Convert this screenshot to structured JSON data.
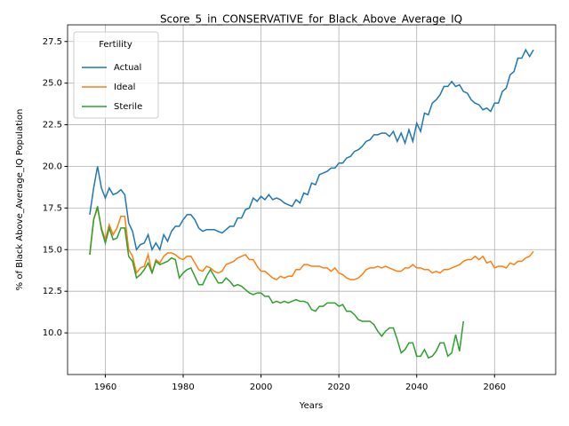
{
  "chart_data": {
    "type": "line",
    "title": "Score_5_in_CONSERVATIVE_for_Black_Above_Average_IQ",
    "xlabel": "Years",
    "ylabel": "% of Black Above_Average_IQ Population",
    "legend_title": "Fertility",
    "legend": "upper left",
    "grid": true,
    "x": [
      1956,
      1957,
      1958,
      1959,
      1960,
      1961,
      1962,
      1963,
      1964,
      1965,
      1966,
      1967,
      1968,
      1969,
      1970,
      1971,
      1972,
      1973,
      1974,
      1975,
      1976,
      1977,
      1978,
      1979,
      1980,
      1981,
      1982,
      1983,
      1984,
      1985,
      1986,
      1987,
      1988,
      1989,
      1990,
      1991,
      1992,
      1993,
      1994,
      1995,
      1996,
      1997,
      1998,
      1999,
      2000,
      2001,
      2002,
      2003,
      2004,
      2005,
      2006,
      2007,
      2008,
      2009,
      2010,
      2011,
      2012,
      2013,
      2014,
      2015,
      2016,
      2017,
      2018,
      2019,
      2020,
      2021,
      2022,
      2023,
      2024,
      2025,
      2026,
      2027,
      2028,
      2029,
      2030,
      2031,
      2032,
      2033,
      2034,
      2035,
      2036,
      2037,
      2038,
      2039,
      2040,
      2041,
      2042,
      2043,
      2044,
      2045,
      2046,
      2047,
      2048,
      2049,
      2050,
      2051,
      2052,
      2053,
      2054,
      2055,
      2056,
      2057,
      2058,
      2059,
      2060,
      2061,
      2062,
      2063,
      2064,
      2065,
      2066,
      2067,
      2068,
      2069,
      2070
    ],
    "series": [
      {
        "name": "Actual",
        "color": "#1f77b4",
        "values": [
          17.1,
          18.7,
          20.0,
          18.7,
          18.1,
          18.7,
          18.3,
          18.4,
          18.6,
          18.3,
          16.6,
          16.1,
          15.0,
          15.3,
          15.4,
          15.9,
          15.0,
          15.4,
          15.0,
          15.9,
          15.5,
          16.1,
          16.4,
          16.4,
          16.8,
          17.1,
          17.1,
          16.8,
          16.3,
          16.1,
          16.2,
          16.2,
          16.2,
          16.1,
          16.0,
          16.2,
          16.4,
          16.4,
          16.9,
          16.9,
          17.4,
          17.5,
          18.1,
          17.9,
          18.2,
          18.0,
          18.3,
          18.0,
          18.1,
          18.0,
          17.8,
          17.7,
          17.6,
          18.0,
          17.8,
          18.4,
          18.3,
          19.0,
          18.9,
          19.5,
          19.6,
          19.7,
          19.9,
          19.9,
          20.2,
          20.2,
          20.5,
          20.6,
          20.9,
          21.0,
          21.2,
          21.5,
          21.6,
          21.9,
          21.9,
          22.0,
          22.0,
          21.8,
          22.1,
          21.5,
          22.0,
          21.4,
          22.2,
          21.5,
          22.6,
          22.1,
          23.2,
          23.1,
          23.8,
          24.0,
          24.3,
          24.8,
          24.8,
          25.1,
          24.8,
          24.9,
          24.5,
          24.4,
          24.0,
          23.8,
          23.7,
          23.4,
          23.5,
          23.3,
          23.8,
          23.8,
          24.5,
          24.7,
          25.5,
          25.7,
          26.5,
          26.5,
          27.0,
          26.6,
          27.0
        ]
      },
      {
        "name": "Ideal",
        "color": "#ff7f0e",
        "values": [
          14.7,
          16.8,
          17.5,
          16.3,
          15.6,
          16.5,
          15.9,
          16.3,
          17.0,
          17.0,
          15.0,
          14.6,
          13.6,
          13.9,
          14.0,
          14.7,
          13.6,
          14.4,
          14.2,
          14.6,
          14.8,
          14.8,
          14.7,
          14.5,
          14.4,
          14.6,
          14.6,
          14.2,
          13.8,
          13.7,
          14.0,
          13.9,
          13.7,
          13.6,
          13.7,
          14.1,
          14.2,
          14.3,
          14.5,
          14.6,
          14.7,
          14.4,
          14.4,
          14.0,
          13.7,
          13.7,
          13.5,
          13.3,
          13.2,
          13.4,
          13.3,
          13.4,
          13.4,
          13.8,
          13.8,
          14.1,
          14.1,
          14.0,
          14.0,
          14.0,
          13.9,
          13.9,
          13.7,
          13.9,
          13.6,
          13.5,
          13.3,
          13.2,
          13.2,
          13.3,
          13.5,
          13.8,
          13.9,
          13.9,
          14.0,
          13.9,
          14.0,
          13.9,
          13.8,
          13.7,
          13.7,
          13.9,
          13.9,
          14.1,
          13.9,
          13.9,
          13.8,
          13.8,
          13.6,
          13.7,
          13.6,
          13.8,
          13.8,
          13.9,
          14.0,
          14.1,
          14.3,
          14.4,
          14.4,
          14.6,
          14.4,
          14.6,
          14.2,
          14.3,
          13.9,
          14.0,
          14.0,
          13.9,
          14.2,
          14.1,
          14.3,
          14.3,
          14.5,
          14.6,
          14.9
        ]
      },
      {
        "name": "Sterile",
        "color": "#2ca02c",
        "values": [
          14.7,
          16.8,
          17.6,
          16.2,
          15.4,
          16.3,
          15.6,
          15.7,
          16.3,
          16.3,
          14.6,
          14.3,
          13.3,
          13.5,
          13.8,
          14.2,
          13.6,
          14.3,
          14.1,
          14.2,
          14.3,
          14.5,
          14.4,
          13.3,
          13.6,
          13.8,
          13.9,
          13.4,
          12.9,
          12.9,
          13.4,
          13.8,
          13.4,
          13.0,
          13.0,
          13.3,
          13.1,
          12.8,
          12.9,
          12.8,
          12.6,
          12.4,
          12.3,
          12.4,
          12.4,
          12.2,
          12.2,
          11.8,
          11.9,
          11.8,
          11.9,
          11.8,
          11.9,
          12.0,
          11.9,
          11.9,
          11.8,
          11.4,
          11.3,
          11.6,
          11.6,
          11.8,
          11.8,
          11.8,
          11.6,
          11.7,
          11.3,
          11.3,
          11.1,
          10.8,
          10.7,
          10.7,
          10.7,
          10.5,
          10.1,
          9.8,
          10.1,
          10.3,
          10.3,
          9.6,
          8.8,
          9.0,
          9.4,
          9.4,
          8.6,
          8.6,
          9.0,
          8.5,
          8.6,
          8.9,
          9.4,
          9.4,
          8.6,
          8.8,
          9.9,
          8.9,
          10.7,
          null,
          null,
          null,
          null,
          null,
          null,
          null,
          null,
          null,
          null,
          null,
          null,
          null,
          null,
          null,
          null,
          null,
          null
        ]
      }
    ],
    "xlim": [
      1950.3,
      2075.7
    ],
    "xticks": [
      1960,
      1980,
      2000,
      2020,
      2040,
      2060
    ],
    "ylim": [
      7.5,
      28.5
    ],
    "yticks": [
      {
        "value": 10,
        "label": "10.0"
      },
      12.5,
      {
        "value": 15,
        "label": "15.0"
      },
      17.5,
      {
        "value": 20,
        "label": "20.0"
      },
      22.5,
      {
        "value": 25,
        "label": "25.0"
      },
      27.5
    ]
  }
}
